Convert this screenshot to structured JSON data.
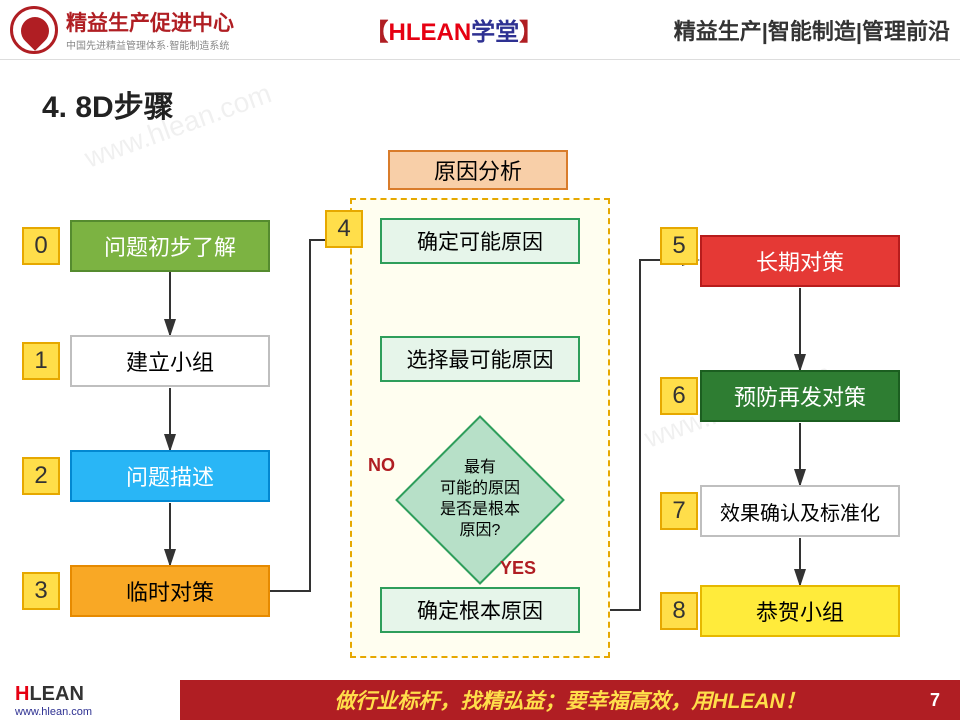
{
  "header": {
    "logo_title": "精益生产促进中心",
    "logo_sub": "中国先进精益管理体系·智能制造系统",
    "bracket_l": "【",
    "hlean": "HLEAN",
    "xuetang": "学堂",
    "bracket_r": "】",
    "right": "精益生产|智能制造|管理前沿"
  },
  "title": "4. 8D步骤",
  "numbers": [
    "0",
    "1",
    "2",
    "3",
    "4",
    "5",
    "6",
    "7",
    "8"
  ],
  "analysis_title": "原因分析",
  "steps": {
    "s0": "问题初步了解",
    "s1": "建立小组",
    "s2": "问题描述",
    "s3": "临时对策",
    "s4a": "确定可能原因",
    "s4b": "选择最可能原因",
    "s4c": "最有\n可能的原因\n是否是根本\n原因?",
    "s4d": "确定根本原因",
    "s5": "长期对策",
    "s6": "预防再发对策",
    "s7": "效果确认及标准化",
    "s8": "恭贺小组"
  },
  "edge_labels": {
    "no": "NO",
    "yes": "YES"
  },
  "colors": {
    "green_bg": "#7cb342",
    "green_border": "#558b2f",
    "white_bg": "#ffffff",
    "white_border": "#bfbfbf",
    "blue_bg": "#29b6f6",
    "blue_border": "#0288d1",
    "orange_bg": "#f9a825",
    "orange_border": "#e68a00",
    "red_bg": "#e53935",
    "red_border": "#b71c1c",
    "dgreen_bg": "#2e7d32",
    "dgreen_border": "#1b5e20",
    "yellow_bg": "#ffeb3b",
    "yellow_border": "#e6b800",
    "diamond_bg": "#b7e0c8",
    "diamond_border": "#2e9e5b",
    "arrow": "#333333"
  },
  "footer": {
    "logo_h": "H",
    "logo_lean": "LEAN",
    "url": "www.hlean.com",
    "slogan": "做行业标杆，找精弘益；要幸福高效，用HLEAN！",
    "page": "7"
  },
  "watermark": "www.hlean.com"
}
